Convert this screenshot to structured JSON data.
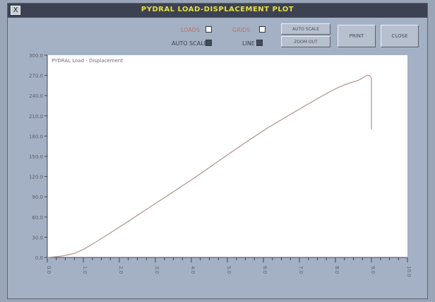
{
  "window": {
    "title": "PYDRAL LOAD-DISPLACEMENT PLOT",
    "close_label": "X"
  },
  "controls": {
    "checkbox_a": {
      "label": "LOADS",
      "checked": false
    },
    "checkbox_b": {
      "label": "GRIDS",
      "checked": false
    },
    "checkbox_c": {
      "label": "AUTO SCALE",
      "checked": true
    },
    "checkbox_d": {
      "label": "LINE",
      "checked": true
    },
    "btn_top": "AUTO SCALE",
    "btn_bottom": "ZOOM OUT",
    "btn_print": "PRINT",
    "btn_close": "CLOSE"
  },
  "chart_data": {
    "type": "line",
    "legend": "PYDRAL Load - Displacement",
    "ylim": [
      0,
      300
    ],
    "xlim": [
      0,
      10
    ],
    "yticks": [
      0,
      30,
      60,
      90,
      120,
      150,
      180,
      210,
      240,
      270,
      300
    ],
    "xticks": [
      0,
      1,
      2,
      3,
      4,
      5,
      6,
      7,
      8,
      9,
      10
    ],
    "series": [
      {
        "color": "#b49a94",
        "x": [
          0,
          0.5,
          1.0,
          2.0,
          3.0,
          4.0,
          5.0,
          6.0,
          7.0,
          8.0,
          8.6,
          9.0,
          9.0
        ],
        "y": [
          0,
          3,
          12,
          45,
          80,
          115,
          152,
          188,
          220,
          250,
          262,
          265,
          190
        ]
      }
    ]
  }
}
